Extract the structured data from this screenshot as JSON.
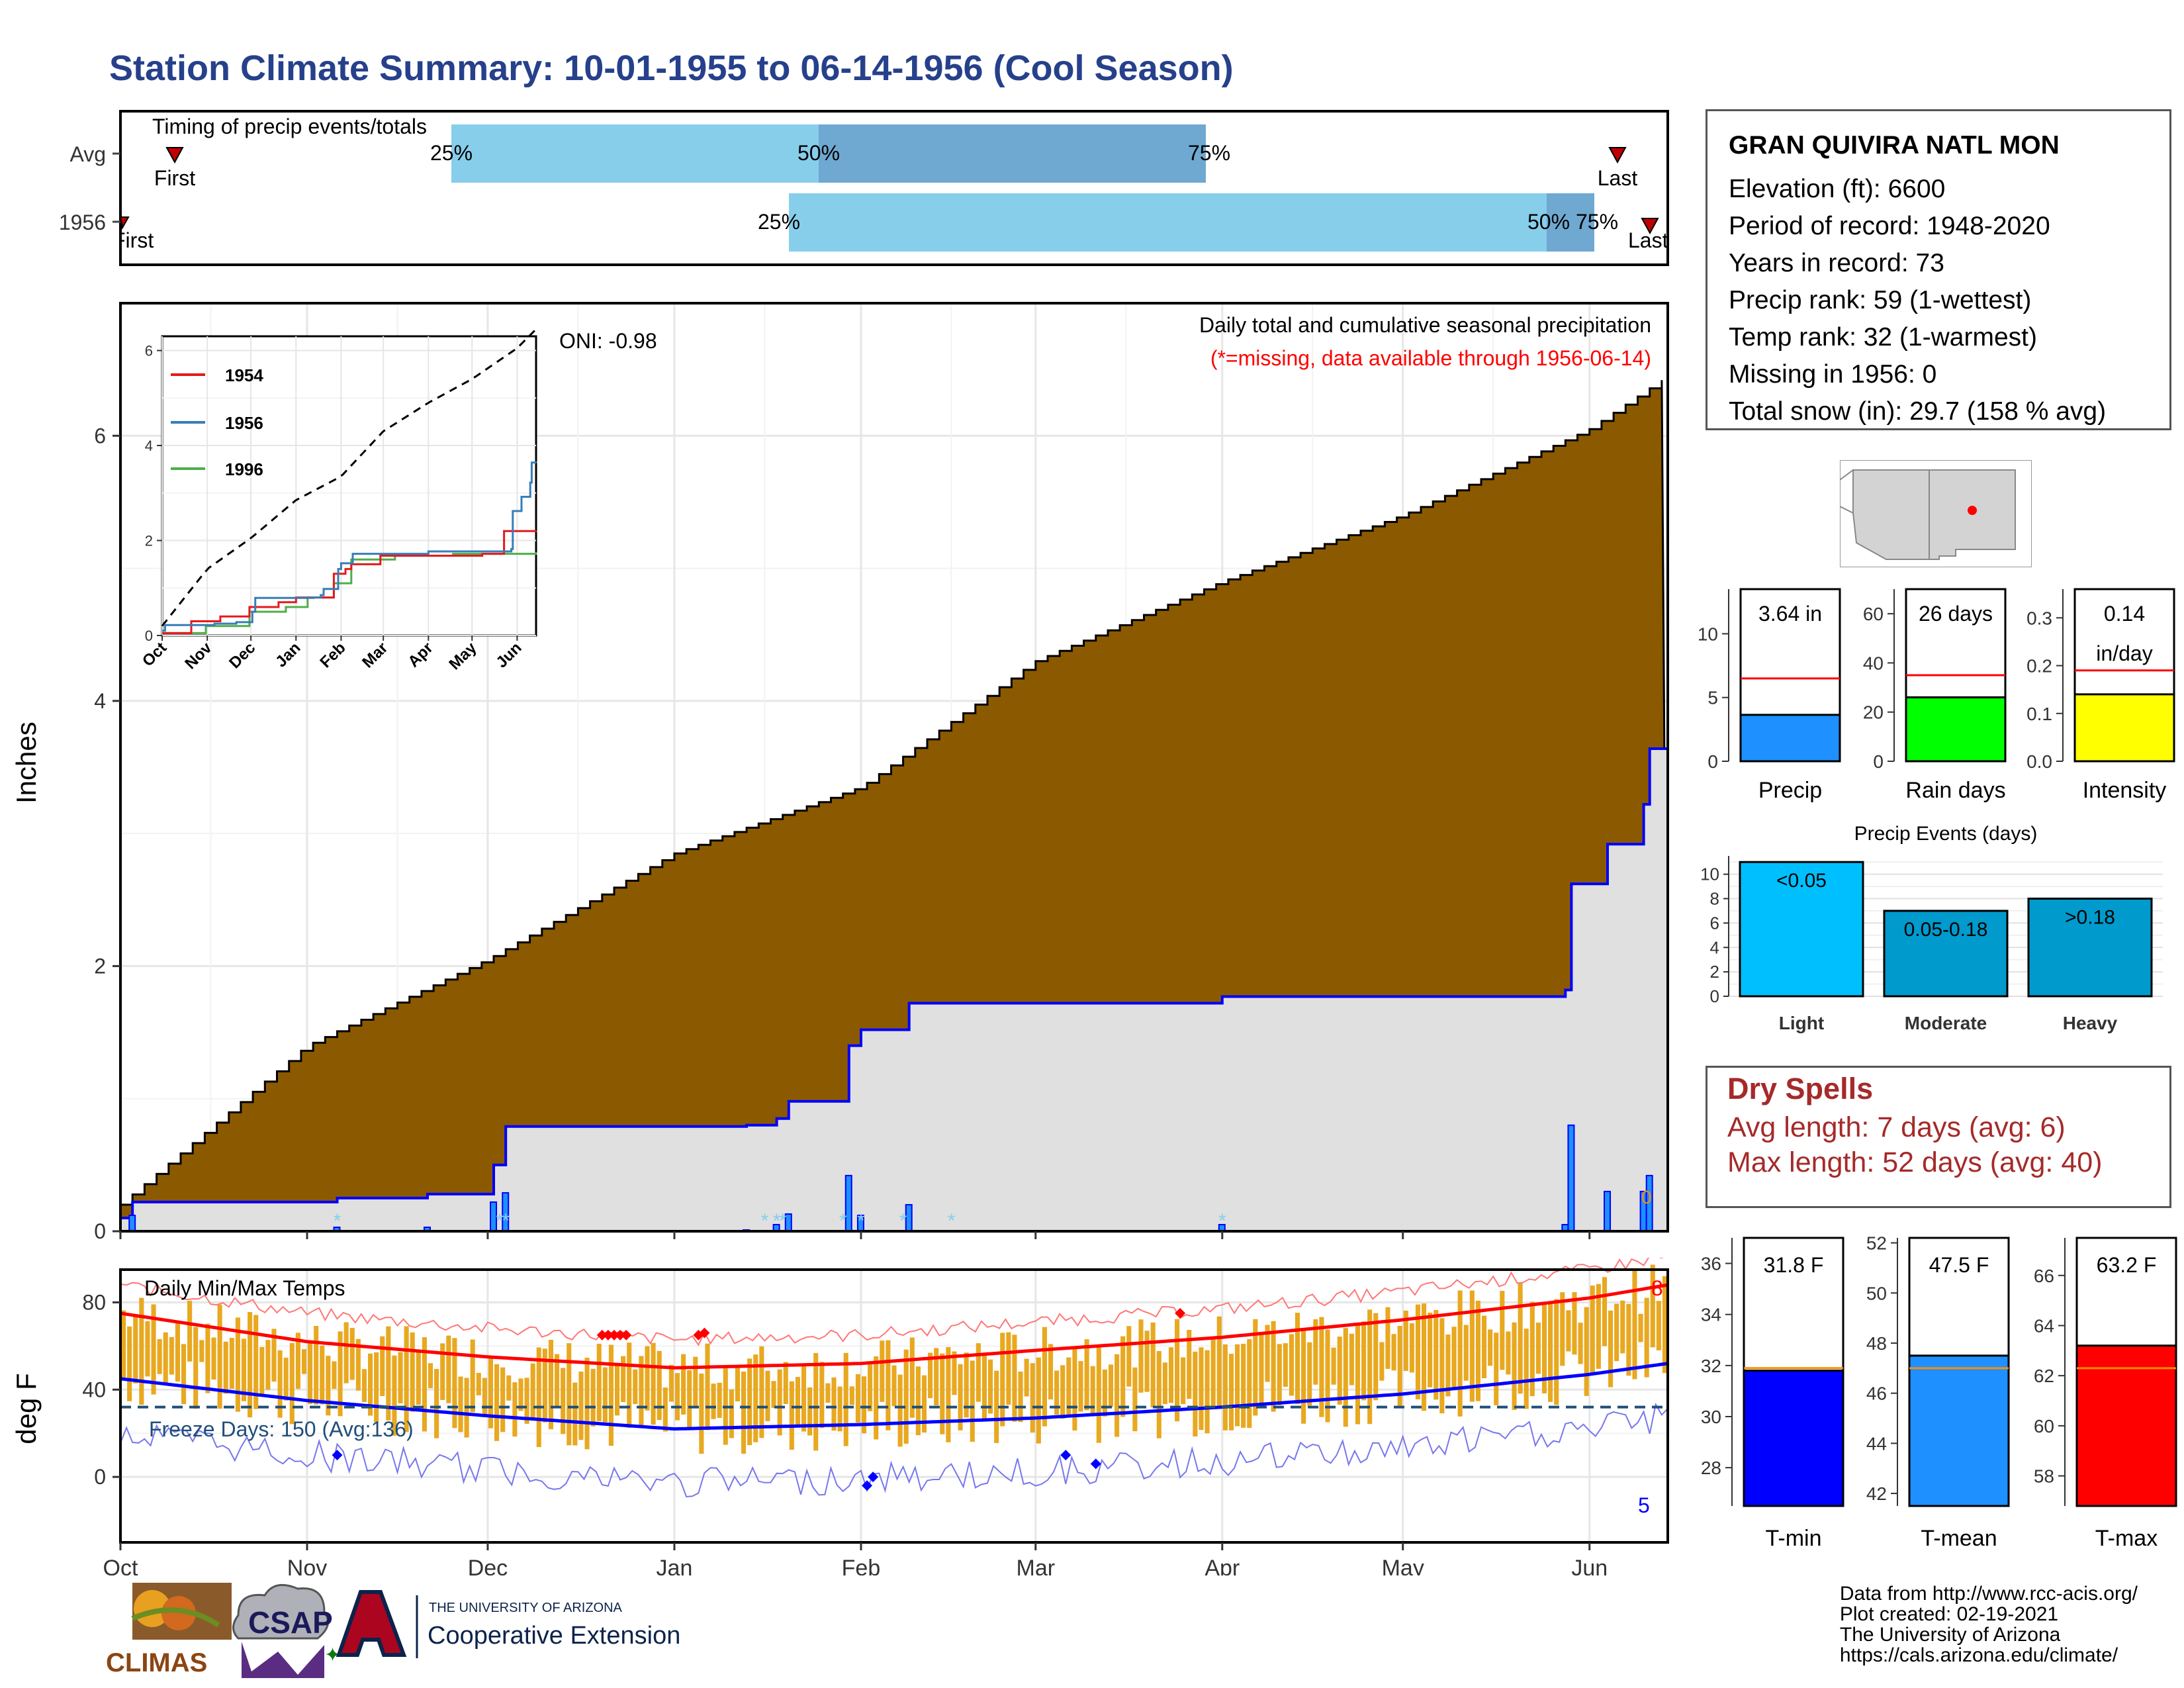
{
  "title": "Station Climate Summary: 10-01-1955 to 06-14-1956 (Cool Season)",
  "colors": {
    "title": "#26408b",
    "cumulative_fill": "#8b5a00",
    "fill_grey": "#e0e0e0",
    "line_blue": "#0000ff",
    "dry_spells": "#a52a2a",
    "temp_bars": "#e8a820",
    "avg_max": "#ff0000",
    "avg_min": "#0000ff"
  },
  "timing": {
    "label": "Timing of precip events/totals",
    "rows": [
      "Avg",
      "1956"
    ],
    "avg": {
      "first_label": "First",
      "last_label": "Last",
      "p25": "25%",
      "p50": "50%",
      "p75": "75%"
    },
    "y1956": {
      "first_label": "First",
      "last_label": "Last",
      "p25": "25%",
      "p50": "50%",
      "p75": "75%"
    }
  },
  "precip_panel": {
    "ylabel": "Inches",
    "yticks": [
      "0",
      "2",
      "4",
      "6"
    ],
    "oni": "ONI: -0.98",
    "subtitle": "Daily total and cumulative seasonal precipitation",
    "missing_note": "(*=missing, data available through 1956-06-14)",
    "missing_count": "0"
  },
  "inset": {
    "yticks": [
      "0",
      "2",
      "4",
      "6"
    ],
    "months": [
      "Oct",
      "Nov",
      "Dec",
      "Jan",
      "Feb",
      "Mar",
      "Apr",
      "May",
      "Jun"
    ],
    "legend": [
      {
        "name": "1954",
        "color": "#e41a1c"
      },
      {
        "name": "1956",
        "color": "#377eb8"
      },
      {
        "name": "1996",
        "color": "#4daf4a"
      }
    ]
  },
  "temp_panel": {
    "ylabel": "deg F",
    "title": "Daily Min/Max Temps",
    "yticks": [
      "0",
      "40",
      "80"
    ],
    "freeze_label": "Freeze Days: 150 (Avg:136)",
    "count_high": "8",
    "count_low": "5"
  },
  "x_months": [
    "Oct",
    "Nov",
    "Dec",
    "Jan",
    "Feb",
    "Mar",
    "Apr",
    "May",
    "Jun"
  ],
  "station": {
    "name": "GRAN QUIVIRA NATL MON",
    "lines": [
      "Elevation (ft): 6600",
      "Period of record: 1948-2020",
      "Years in record: 73",
      "Precip rank: 59 (1-wettest)",
      "Temp rank: 32 (1-warmest)",
      "Missing in 1956: 0",
      "Total snow (in): 29.7 (158 % avg)"
    ]
  },
  "mini_bars": [
    {
      "label": "Precip",
      "value_label": "3.64 in",
      "value": 3.64,
      "avg": 6.5,
      "ymax": 13.5,
      "ticks": [
        "0",
        "5",
        "10"
      ],
      "tick_vals": [
        0,
        5,
        10
      ],
      "color": "#1e90ff"
    },
    {
      "label": "Rain days",
      "value_label": "26 days",
      "value": 26,
      "avg": 35,
      "ymax": 70,
      "ticks": [
        "0",
        "20",
        "40",
        "60"
      ],
      "tick_vals": [
        0,
        20,
        40,
        60
      ],
      "color": "#00ff00"
    },
    {
      "label": "Intensity",
      "value_label": "0.14\nin/day",
      "value": 0.14,
      "avg": 0.19,
      "ymax": 0.36,
      "ticks": [
        "0.0",
        "0.1",
        "0.2",
        "0.3"
      ],
      "tick_vals": [
        0,
        0.1,
        0.2,
        0.3
      ],
      "color": "#ffff00"
    }
  ],
  "events": {
    "title": "Precip Events (days)",
    "yticks": [
      "0",
      "2",
      "4",
      "6",
      "8",
      "10"
    ],
    "bars": [
      {
        "category": "Light",
        "label": "<0.05",
        "value": 11,
        "color": "#00bfff"
      },
      {
        "category": "Moderate",
        "label": "0.05-0.18",
        "value": 7,
        "color": "#009acd"
      },
      {
        "category": "Heavy",
        "label": ">0.18",
        "value": 8,
        "color": "#009acd"
      }
    ]
  },
  "dry_spells": {
    "title": "Dry Spells",
    "avg_length": "Avg length: 7 days (avg: 6)",
    "max_length": "Max length: 52 days (avg: 40)"
  },
  "temp_bars": [
    {
      "label": "T-min",
      "value_label": "31.8 F",
      "value": 31.8,
      "avg": 31.9,
      "ymin": 26.5,
      "ymax": 37,
      "ticks": [
        "28",
        "30",
        "32",
        "34",
        "36"
      ],
      "tick_vals": [
        28,
        30,
        32,
        34,
        36
      ],
      "color": "#0000ff"
    },
    {
      "label": "T-mean",
      "value_label": "47.5 F",
      "value": 47.5,
      "avg": 47.0,
      "ymin": 41.5,
      "ymax": 52.2,
      "ticks": [
        "42",
        "44",
        "46",
        "48",
        "50",
        "52"
      ],
      "tick_vals": [
        42,
        44,
        46,
        48,
        50,
        52
      ],
      "color": "#1e90ff"
    },
    {
      "label": "T-max",
      "value_label": "63.2 F",
      "value": 63.2,
      "avg": 62.3,
      "ymin": 56.8,
      "ymax": 67.5,
      "ticks": [
        "58",
        "60",
        "62",
        "64",
        "66"
      ],
      "tick_vals": [
        58,
        60,
        62,
        64,
        66
      ],
      "color": "#ff0000"
    }
  ],
  "logos": {
    "climas": "CLIMAS",
    "csap": "CSAP",
    "univ": "THE UNIVERSITY OF ARIZONA",
    "coop": "Cooperative Extension"
  },
  "credits": [
    "Data from http://www.rcc-acis.org/",
    "Plot created: 02-19-2021",
    "The University of Arizona",
    "https://cals.arizona.edu/climate/"
  ],
  "chart_data": [
    {
      "type": "line",
      "title": "Daily total and cumulative seasonal precipitation",
      "ylabel": "Inches",
      "ylim": [
        0,
        7
      ],
      "series": [
        {
          "name": "Average cumulative",
          "x": [
            "10-01",
            "11-01",
            "12-01",
            "01-01",
            "02-01",
            "03-01",
            "04-01",
            "05-01",
            "06-01",
            "06-14"
          ],
          "values": [
            0.2,
            1.4,
            2.05,
            2.85,
            3.35,
            4.3,
            4.9,
            5.4,
            6.05,
            6.45
          ]
        },
        {
          "name": "1956 cumulative",
          "x": [
            "10-01",
            "10-03",
            "11-06",
            "11-21",
            "12-02",
            "12-04",
            "01-13",
            "01-18",
            "01-20",
            "01-30",
            "02-01",
            "02-09",
            "04-01",
            "05-28",
            "05-29",
            "06-04",
            "06-10",
            "06-11",
            "06-14"
          ],
          "values": [
            0.1,
            0.22,
            0.25,
            0.28,
            0.5,
            0.79,
            0.8,
            0.85,
            0.98,
            1.4,
            1.52,
            1.72,
            1.77,
            1.82,
            2.62,
            2.92,
            3.22,
            3.64,
            3.64
          ]
        }
      ]
    },
    {
      "type": "line",
      "title": "Daily Min/Max Temps",
      "ylabel": "deg F",
      "series": [
        {
          "name": "Avg max",
          "x": [
            "10-01",
            "11-01",
            "12-01",
            "01-01",
            "02-01",
            "03-01",
            "04-01",
            "05-01",
            "06-01",
            "06-14"
          ],
          "values": [
            75,
            62,
            55,
            50,
            52,
            58,
            64,
            72,
            82,
            88
          ]
        },
        {
          "name": "Avg min",
          "x": [
            "10-01",
            "11-01",
            "12-01",
            "01-01",
            "02-01",
            "03-01",
            "04-01",
            "05-01",
            "06-01",
            "06-14"
          ],
          "values": [
            45,
            35,
            28,
            22,
            24,
            27,
            32,
            38,
            47,
            52
          ]
        }
      ],
      "freeze_line": 32
    }
  ]
}
